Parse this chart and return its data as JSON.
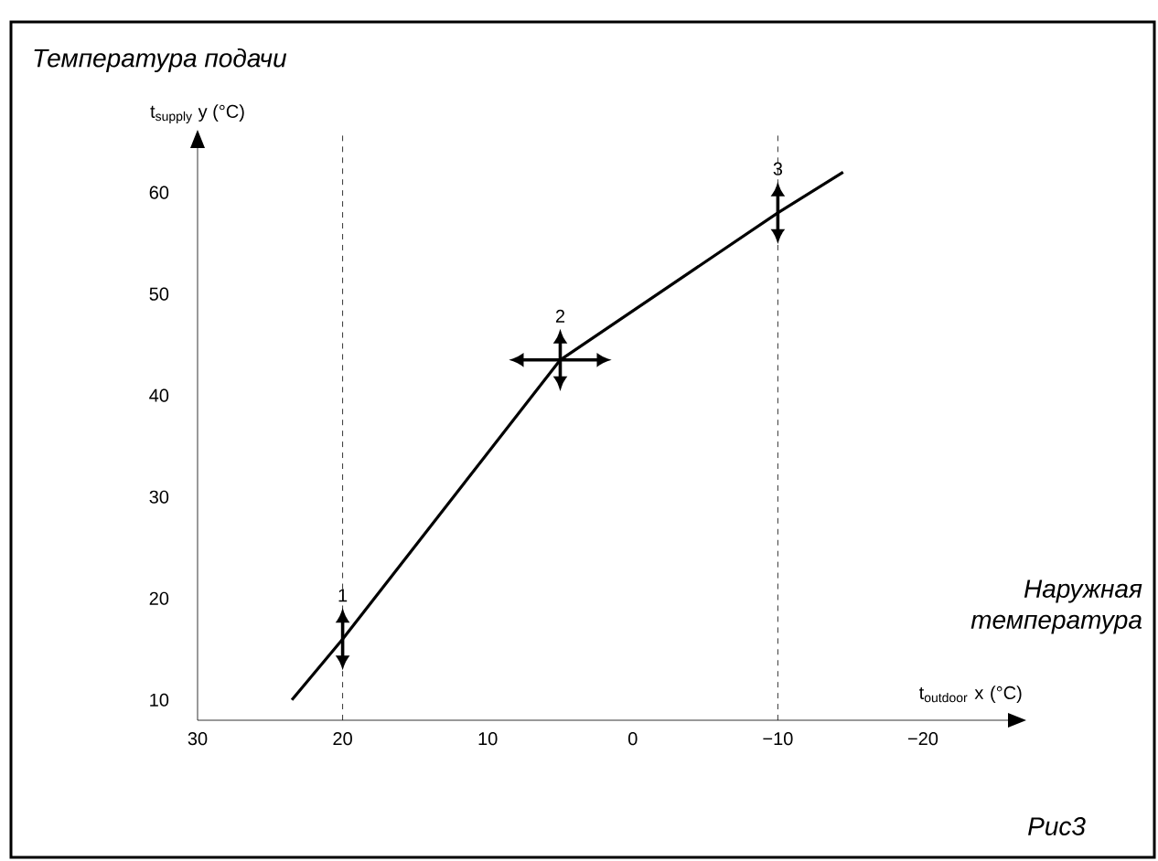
{
  "chart_data": {
    "type": "line",
    "title": "Температура подачи",
    "xlabel": "t$_{outdoor}$ x (°C)",
    "ylabel": "t$_{supply}$ y (°C)",
    "xlim": [
      30,
      -27
    ],
    "ylim": [
      8,
      66
    ],
    "xticks": [
      30,
      20,
      10,
      0,
      {
        "value": -10,
        "label": "−10"
      },
      {
        "value": -20,
        "label": "−20"
      }
    ],
    "yticks": [
      10,
      20,
      30,
      40,
      50,
      60
    ],
    "series": [
      {
        "color": "#000000",
        "line_style": "solid",
        "x": [
          23.5,
          20,
          5,
          -10,
          -14.5
        ],
        "values": [
          10,
          16,
          43.5,
          58,
          62
        ]
      }
    ],
    "ref_lines": [
      {
        "axis": "x",
        "value": 20,
        "color": "#000000",
        "line_style": "dashed"
      },
      {
        "axis": "x",
        "value": -10,
        "color": "#000000",
        "line_style": "dashed"
      }
    ],
    "annotations": [
      {
        "text": "1",
        "x": 20,
        "y": 16
      },
      {
        "text": "2",
        "x": 5,
        "y": 43.5
      },
      {
        "text": "3",
        "x": -10,
        "y": 58
      },
      "Наружная температура",
      "Рис3"
    ]
  }
}
